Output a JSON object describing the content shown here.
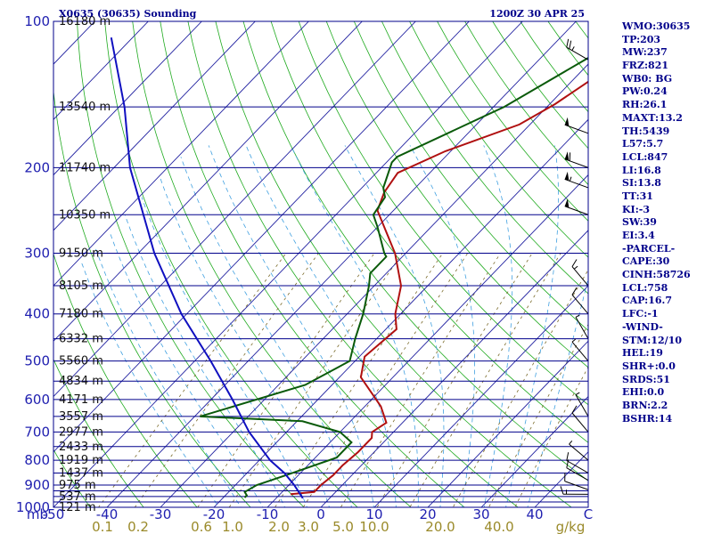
{
  "title_left": "X0635 (30635) Sounding",
  "title_right": "1200Z 30 APR 25",
  "colors": {
    "isobar": "#00008b",
    "isotherm": "#2020a0",
    "dry_adiabat": "#1faa1f",
    "moist_adiabat": "#40a0e0",
    "mixing_ratio": "#7a6a2a",
    "temperature": "#b01010",
    "dewpoint": "#0a5a0a",
    "parcel": "#1010c0",
    "text": "#00008b"
  },
  "chart_data": {
    "type": "line",
    "diagram": "skew-T log-P",
    "y_scale": "log",
    "ylim": [
      1000,
      100
    ],
    "xlim": [
      -50,
      50
    ],
    "xlabel": "C",
    "y_unit_label": "mb",
    "mixing_unit_label": "g/kg",
    "pressure_levels": [
      1000,
      900,
      800,
      700,
      600,
      500,
      400,
      300,
      200,
      100
    ],
    "temperature_ticks": [
      -50,
      -40,
      -30,
      -20,
      -10,
      0,
      10,
      20,
      30,
      40
    ],
    "temperature_tick_labels": [
      "-50",
      "-40",
      "-30",
      "-20",
      "-10",
      "0",
      "10",
      "20",
      "30",
      "40"
    ],
    "x_end_label": "C",
    "mixing_ratio_labels": [
      "0.1",
      "0.2",
      "0.6",
      "1.0",
      "2.0",
      "3.0",
      "5.0",
      "10.0",
      "20.0",
      "40.0"
    ],
    "height_labels": [
      {
        "p": 100,
        "text": "16180 m"
      },
      {
        "p": 150,
        "text": "13540 m"
      },
      {
        "p": 200,
        "text": "11740 m"
      },
      {
        "p": 250,
        "text": "10350 m"
      },
      {
        "p": 300,
        "text": "9150 m"
      },
      {
        "p": 350,
        "text": "8105 m"
      },
      {
        "p": 400,
        "text": "7180 m"
      },
      {
        "p": 450,
        "text": "6332 m"
      },
      {
        "p": 500,
        "text": "5560 m"
      },
      {
        "p": 550,
        "text": "4834 m"
      },
      {
        "p": 600,
        "text": "4171 m"
      },
      {
        "p": 650,
        "text": "3557 m"
      },
      {
        "p": 700,
        "text": "2977 m"
      },
      {
        "p": 750,
        "text": "2433 m"
      },
      {
        "p": 800,
        "text": "1919 m"
      },
      {
        "p": 850,
        "text": "1437 m"
      },
      {
        "p": 900,
        "text": "975 m"
      },
      {
        "p": 950,
        "text": "537 m"
      },
      {
        "p": 1000,
        "text": "121 m"
      }
    ],
    "series": [
      {
        "key": "temperature",
        "points": [
          [
            940,
            -8
          ],
          [
            930,
            -4
          ],
          [
            900,
            -4
          ],
          [
            860,
            -3.5
          ],
          [
            820,
            -3.5
          ],
          [
            770,
            -3
          ],
          [
            720,
            -3
          ],
          [
            700,
            -4
          ],
          [
            670,
            -3
          ],
          [
            620,
            -7
          ],
          [
            540,
            -16
          ],
          [
            490,
            -19
          ],
          [
            430,
            -18
          ],
          [
            400,
            -21
          ],
          [
            350,
            -25
          ],
          [
            300,
            -32
          ],
          [
            245,
            -43
          ],
          [
            225,
            -45
          ],
          [
            205,
            -46
          ],
          [
            185,
            -41
          ],
          [
            163,
            -32
          ],
          [
            148,
            -29
          ],
          [
            100,
            -21
          ]
        ]
      },
      {
        "key": "dewpoint",
        "points": [
          [
            955,
            -16
          ],
          [
            945,
            -16
          ],
          [
            930,
            -17
          ],
          [
            900,
            -16
          ],
          [
            855,
            -12
          ],
          [
            790,
            -6
          ],
          [
            735,
            -6
          ],
          [
            700,
            -10
          ],
          [
            665,
            -19
          ],
          [
            650,
            -39
          ],
          [
            560,
            -25
          ],
          [
            500,
            -21
          ],
          [
            450,
            -24
          ],
          [
            400,
            -27
          ],
          [
            350,
            -31
          ],
          [
            330,
            -33
          ],
          [
            305,
            -33
          ],
          [
            300,
            -34
          ],
          [
            265,
            -40
          ],
          [
            250,
            -43
          ],
          [
            230,
            -44
          ],
          [
            220,
            -46
          ],
          [
            195,
            -49
          ],
          [
            190,
            -49
          ],
          [
            150,
            -38
          ],
          [
            100,
            -26
          ]
        ]
      },
      {
        "key": "parcel",
        "points": [
          [
            958,
            -5
          ],
          [
            900,
            -9
          ],
          [
            850,
            -13
          ],
          [
            800,
            -18
          ],
          [
            700,
            -27
          ],
          [
            600,
            -36
          ],
          [
            500,
            -47
          ],
          [
            400,
            -61
          ],
          [
            300,
            -77
          ],
          [
            200,
            -97
          ],
          [
            150,
            -109
          ],
          [
            108,
            -124
          ]
        ]
      }
    ],
    "wind_barbs": [
      {
        "p": 940,
        "dir": 270,
        "kt": 15
      },
      {
        "p": 920,
        "dir": 290,
        "kt": 10
      },
      {
        "p": 880,
        "dir": 300,
        "kt": 10
      },
      {
        "p": 850,
        "dir": 300,
        "kt": 10
      },
      {
        "p": 800,
        "dir": 310,
        "kt": 5
      },
      {
        "p": 700,
        "dir": 320,
        "kt": 10
      },
      {
        "p": 650,
        "dir": 330,
        "kt": 5
      },
      {
        "p": 500,
        "dir": 320,
        "kt": 5
      },
      {
        "p": 450,
        "dir": 330,
        "kt": 5
      },
      {
        "p": 400,
        "dir": 320,
        "kt": 10
      },
      {
        "p": 350,
        "dir": 320,
        "kt": 15
      },
      {
        "p": 250,
        "dir": 290,
        "kt": 50
      },
      {
        "p": 220,
        "dir": 290,
        "kt": 55
      },
      {
        "p": 200,
        "dir": 290,
        "kt": 60
      },
      {
        "p": 170,
        "dir": 290,
        "kt": 50
      },
      {
        "p": 120,
        "dir": 300,
        "kt": 25
      }
    ]
  },
  "indices": [
    "WMO:30635",
    "TP:203",
    "MW:237",
    "FRZ:821",
    "WB0: BG",
    "PW:0.24",
    "RH:26.1",
    "MAXT:13.2",
    "TH:5439",
    "L57:5.7",
    "LCL:847",
    "LI:16.8",
    "SI:13.8",
    "TT:31",
    "KI:-3",
    "SW:39",
    "EI:3.4",
    "-PARCEL-",
    "CAPE:30",
    "CINH:58726",
    "LCL:758",
    "CAP:16.7",
    "LFC:-1",
    "-WIND-",
    "STM:12/10",
    "HEL:19",
    "SHR+:0.0",
    "SRDS:51",
    "EHI:0.0",
    "BRN:2.2",
    "BSHR:14"
  ]
}
